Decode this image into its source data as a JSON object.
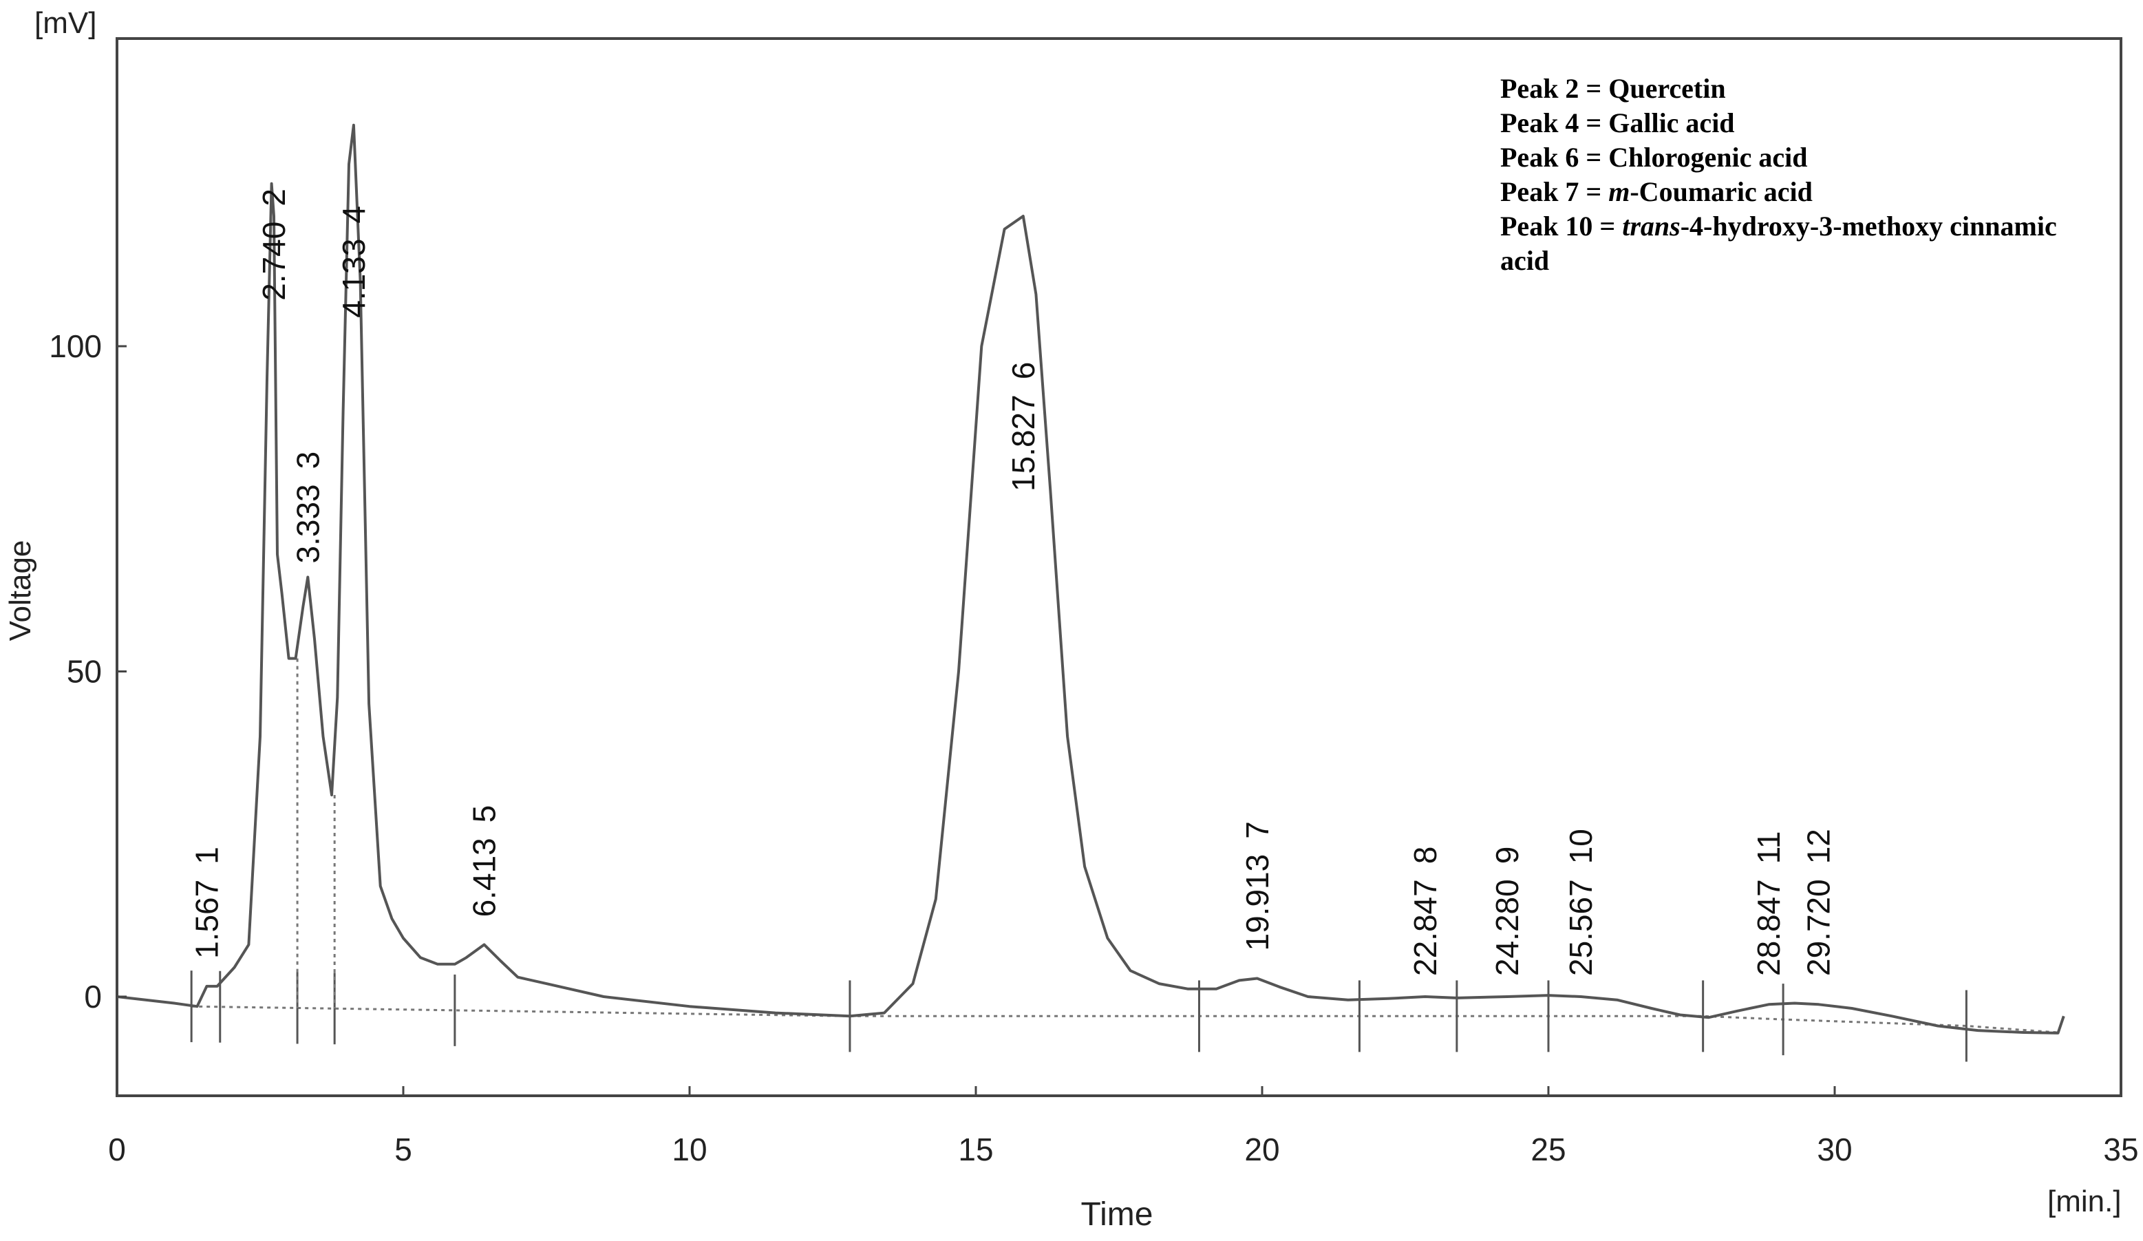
{
  "chart_data": {
    "type": "line",
    "xlabel": "Time",
    "ylabel": "Voltage",
    "x_unit": "[min.]",
    "y_unit": "[mV]",
    "xlim": [
      0,
      35
    ],
    "ylim": [
      -16,
      146
    ],
    "x_ticks": [
      0,
      5,
      10,
      15,
      20,
      25,
      30,
      35
    ],
    "y_ticks": [
      0,
      50,
      100
    ],
    "grid": false,
    "series": [
      {
        "x": [
          0,
          1.0,
          1.4,
          1.567,
          1.75,
          2.05,
          2.3,
          2.5,
          2.62,
          2.7,
          2.74,
          2.8,
          2.88,
          3.0,
          3.12,
          3.25,
          3.333,
          3.45,
          3.6,
          3.75,
          3.85,
          3.95,
          4.05,
          4.133,
          4.25,
          4.4,
          4.6,
          4.8,
          5.0,
          5.3,
          5.6,
          5.9,
          6.1,
          6.413,
          6.7,
          7.0,
          7.5,
          8.5,
          10,
          11.5,
          12.8,
          13.4,
          13.9,
          14.3,
          14.7,
          15.1,
          15.5,
          15.827,
          16.05,
          16.3,
          16.6,
          16.9,
          17.3,
          17.7,
          18.2,
          18.7,
          19.2,
          19.6,
          19.913,
          20.3,
          20.8,
          21.5,
          22.2,
          22.847,
          23.4,
          24.28,
          25.0,
          25.567,
          26.2,
          26.8,
          27.3,
          27.8,
          28.3,
          28.847,
          29.3,
          29.72,
          30.3,
          31.0,
          31.8,
          32.5,
          33.3,
          33.9,
          34.0
        ],
        "values": [
          0,
          -1,
          -1.5,
          1.6,
          1.6,
          4.5,
          8,
          40,
          95,
          125,
          120,
          68,
          62,
          52,
          52,
          60,
          64.5,
          55,
          40,
          31,
          46,
          90,
          128,
          134,
          110,
          45,
          17,
          12,
          9,
          6,
          5,
          5,
          6,
          8,
          5.5,
          3,
          2,
          0,
          -1.5,
          -2.5,
          -3,
          -2.5,
          2,
          15,
          50,
          100,
          118,
          120,
          108,
          78,
          40,
          20,
          9,
          4,
          2,
          1.2,
          1.2,
          2.5,
          2.8,
          1.5,
          0,
          -0.5,
          -0.3,
          0,
          -0.2,
          0,
          0.2,
          0,
          -0.5,
          -1.8,
          -2.8,
          -3.2,
          -2.2,
          -1.2,
          -1,
          -1.2,
          -1.8,
          -3,
          -4.5,
          -5.2,
          -5.5,
          -5.6,
          -3
        ]
      }
    ],
    "peaks": [
      {
        "no": "1",
        "rt": "1.567",
        "x": 1.567,
        "y": 1.6
      },
      {
        "no": "2",
        "rt": "2.740",
        "x": 2.74,
        "y": 125
      },
      {
        "no": "3",
        "rt": "3.333",
        "x": 3.333,
        "y": 64.5
      },
      {
        "no": "4",
        "rt": "4.133",
        "x": 4.133,
        "y": 134
      },
      {
        "no": "5",
        "rt": "6.413",
        "x": 6.413,
        "y": 8
      },
      {
        "no": "6",
        "rt": "15.827",
        "x": 15.827,
        "y": 120
      },
      {
        "no": "7",
        "rt": "19.913",
        "x": 19.913,
        "y": 2.8
      },
      {
        "no": "8",
        "rt": "22.847",
        "x": 22.847,
        "y": 0
      },
      {
        "no": "9",
        "rt": "24.280",
        "x": 24.28,
        "y": 0
      },
      {
        "no": "10",
        "rt": "25.567",
        "x": 25.567,
        "y": 0
      },
      {
        "no": "11",
        "rt": "28.847",
        "x": 28.847,
        "y": -1.2
      },
      {
        "no": "12",
        "rt": "29.720",
        "x": 29.72,
        "y": -1.2
      }
    ],
    "baseline": {
      "x": [
        1.3,
        12.8,
        18.9,
        21.7,
        23.4,
        25.0,
        27.7,
        29.1,
        32.3,
        33.9
      ],
      "values": [
        -1.5,
        -3,
        -3,
        -3,
        -3,
        -3,
        -3,
        -3.5,
        -4.5,
        -5.5
      ]
    },
    "integration_marks": [
      1.3,
      1.8,
      3.15,
      3.8,
      5.9,
      12.8,
      18.9,
      21.7,
      23.4,
      25.0,
      27.7,
      29.1,
      32.3
    ],
    "legend_lines": [
      [
        {
          "t": "Peak 2 = Quercetin",
          "i": false
        }
      ],
      [
        {
          "t": "Peak 4 = Gallic acid",
          "i": false
        }
      ],
      [
        {
          "t": "Peak 6 = Chlorogenic acid",
          "i": false
        }
      ],
      [
        {
          "t": "Peak 7 = ",
          "i": false
        },
        {
          "t": "m",
          "i": true
        },
        {
          "t": "-Coumaric acid",
          "i": false
        }
      ],
      [
        {
          "t": "Peak 10 = ",
          "i": false
        },
        {
          "t": "trans",
          "i": true
        },
        {
          "t": "-4-hydroxy-3-methoxy cinnamic",
          "i": false
        }
      ],
      [
        {
          "t": "acid",
          "i": false
        }
      ]
    ],
    "legend_position": "top-right",
    "line_color": "#555555"
  }
}
